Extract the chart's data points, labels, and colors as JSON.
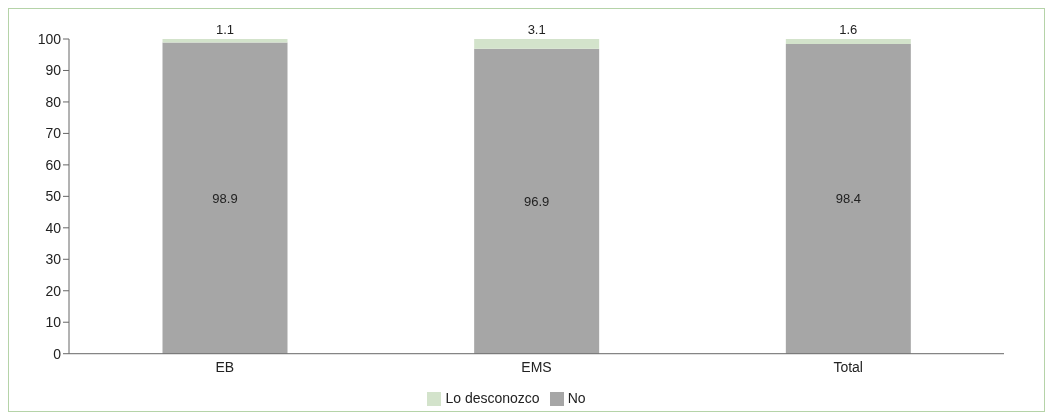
{
  "chart_data": {
    "type": "bar",
    "categories": [
      "EB",
      "EMS",
      "Total"
    ],
    "stacked": true,
    "series": [
      {
        "name": "No",
        "color": "#a6a6a6",
        "values": [
          98.9,
          96.9,
          98.4
        ]
      },
      {
        "name": "Lo desconozco",
        "color": "#d3e3cb",
        "values": [
          1.1,
          3.1,
          1.6
        ]
      }
    ],
    "ylim": [
      0,
      100
    ],
    "yticks": [
      0,
      10,
      20,
      30,
      40,
      50,
      60,
      70,
      80,
      90,
      100
    ],
    "grid": false,
    "legend": "bottom",
    "data_labels": true
  }
}
